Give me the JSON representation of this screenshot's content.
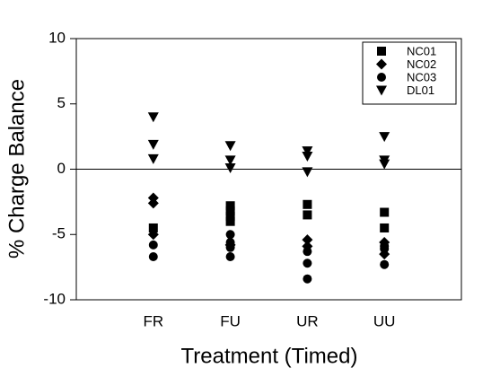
{
  "chart_data": {
    "type": "scatter",
    "x_label": "Treatment (Timed)",
    "y_label": "% Charge Balance",
    "categories": [
      "FR",
      "FU",
      "UR",
      "UU"
    ],
    "ylim": [
      -10,
      10
    ],
    "yticks": [
      10,
      5,
      0,
      -5,
      -10
    ],
    "reference_line": 0,
    "legend": "top-right",
    "series": [
      {
        "name": "NC01",
        "marker": "square",
        "color": "#000000",
        "x": [
          "FR",
          "FU",
          "FU",
          "FU",
          "FU",
          "UR",
          "UR",
          "UU",
          "UU"
        ],
        "values": [
          -4.5,
          -2.8,
          -3.2,
          -3.6,
          -4.0,
          -2.7,
          -3.5,
          -3.3,
          -4.5
        ]
      },
      {
        "name": "NC02",
        "marker": "diamond",
        "color": "#000000",
        "x": [
          "FR",
          "FR",
          "FR",
          "FU",
          "UR",
          "UR",
          "UU",
          "UU"
        ],
        "values": [
          -2.2,
          -2.6,
          -5.0,
          -5.8,
          -5.4,
          -5.9,
          -5.6,
          -6.5
        ]
      },
      {
        "name": "NC03",
        "marker": "circle",
        "color": "#000000",
        "x": [
          "FR",
          "FR",
          "FU",
          "FU",
          "FU",
          "FU",
          "UR",
          "UR",
          "UR",
          "UU",
          "UU",
          "UU"
        ],
        "values": [
          -5.8,
          -6.7,
          -5.0,
          -5.6,
          -6.0,
          -6.7,
          -6.3,
          -7.2,
          -8.4,
          -5.9,
          -6.1,
          -7.3
        ]
      },
      {
        "name": "DL01",
        "marker": "triangle-down",
        "color": "#000000",
        "x": [
          "FR",
          "FR",
          "FR",
          "FU",
          "FU",
          "FU",
          "UR",
          "UR",
          "UR",
          "UU",
          "UU",
          "UU"
        ],
        "values": [
          4.0,
          1.9,
          0.8,
          1.8,
          0.7,
          0.1,
          1.4,
          1.0,
          -0.2,
          2.5,
          0.7,
          0.4
        ]
      }
    ]
  }
}
